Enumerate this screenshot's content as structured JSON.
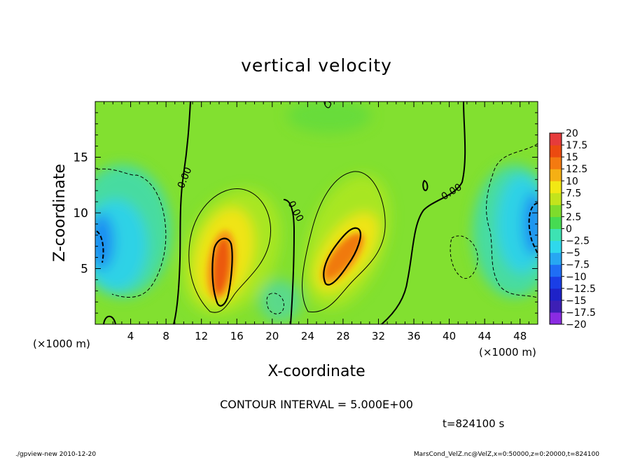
{
  "chart_data": {
    "type": "heatmap",
    "title": "vertical velocity",
    "xlabel": "X-coordinate",
    "ylabel": "Z-coordinate",
    "x_unit": "(×1000 m)",
    "x_unit_left": "(×1000 m)",
    "xlim": [
      0,
      50
    ],
    "ylim": [
      0,
      20
    ],
    "x_ticks": [
      "4",
      "8",
      "12",
      "16",
      "20",
      "24",
      "28",
      "32",
      "36",
      "40",
      "44",
      "48"
    ],
    "y_ticks": [
      "5",
      "10",
      "15"
    ],
    "contour_interval_label": "CONTOUR INTERVAL = 5.000E+00",
    "contour_labels": [
      {
        "text": "0.00",
        "x": 9.7,
        "z": 13.5
      },
      {
        "text": "0.00",
        "x": 22.8,
        "z": 10.0
      },
      {
        "text": "0.00",
        "x": 40.6,
        "z": 11.7
      }
    ],
    "time_label": "t=824100 s",
    "colorbar": {
      "labels": [
        "20",
        "17.5",
        "15",
        "12.5",
        "10",
        "7.5",
        "5",
        "2.5",
        "0",
        "−2.5",
        "−5",
        "−7.5",
        "−10",
        "−12.5",
        "−15",
        "−17.5",
        "−20"
      ],
      "colors": [
        "#8a2be2",
        "#3d1fb5",
        "#1e22c8",
        "#1a3ee6",
        "#1f6ef5",
        "#27a7f2",
        "#2fd8ec",
        "#3de3b3",
        "#46db52",
        "#7edc2c",
        "#c3e41c",
        "#f2e814",
        "#f5b014",
        "#f47a10",
        "#ec4a10",
        "#e63b3b",
        "#f7a0a0"
      ]
    },
    "features": [
      {
        "kind": "updraft",
        "x": 14.5,
        "z": 5.5,
        "peak": 12.5
      },
      {
        "kind": "updraft",
        "x": 28.0,
        "z": 6.5,
        "peak": 12.5
      },
      {
        "kind": "downdraft",
        "x": 1.5,
        "z": 8.0,
        "peak": -10
      },
      {
        "kind": "downdraft",
        "x": 49.0,
        "z": 9.5,
        "peak": -10
      }
    ]
  },
  "footer": {
    "left": "./gpview-new   2010-12-20",
    "right": "MarsCond_VelZ.nc@VelZ,x=0:50000,z=0:20000,t=824100"
  }
}
